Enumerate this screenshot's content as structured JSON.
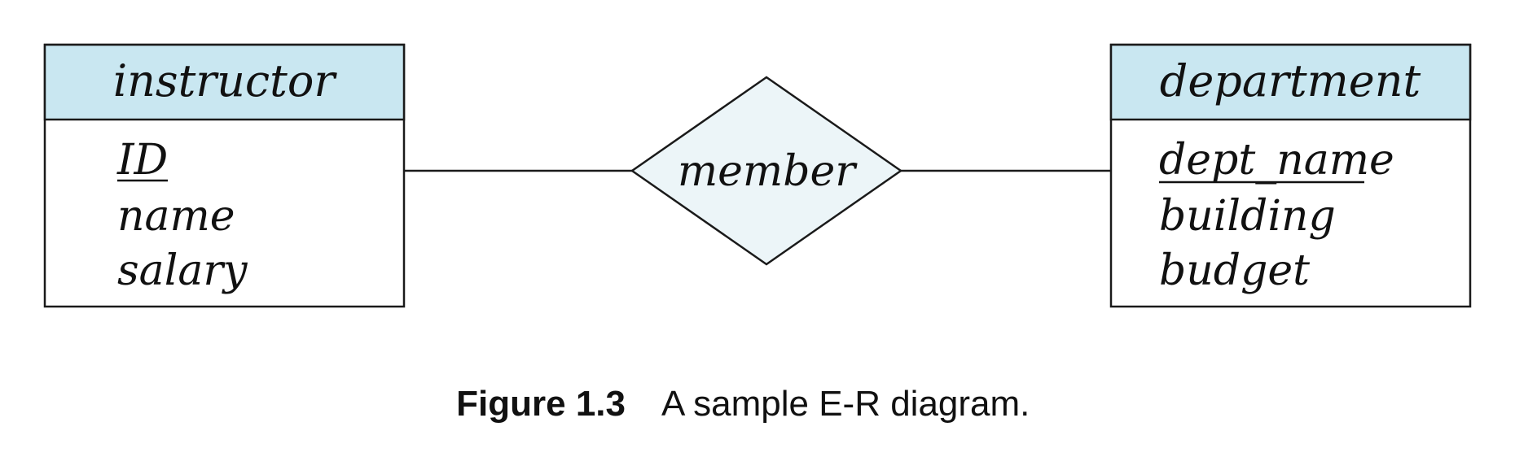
{
  "diagram": {
    "entities": [
      {
        "name": "instructor",
        "attributes": [
          {
            "label": "ID",
            "primary_key": true
          },
          {
            "label": "name",
            "primary_key": false
          },
          {
            "label": "salary",
            "primary_key": false
          }
        ]
      },
      {
        "name": "department",
        "attributes": [
          {
            "label": "dept_name",
            "primary_key": true
          },
          {
            "label": "building",
            "primary_key": false
          },
          {
            "label": "budget",
            "primary_key": false
          }
        ]
      }
    ],
    "relationship": {
      "name": "member"
    },
    "colors": {
      "entity_header_fill": "#c9e7f1",
      "relationship_fill": "#ecf5f8",
      "stroke": "#1a1a1a"
    }
  },
  "caption": {
    "label": "Figure 1.3",
    "text": "A sample E-R diagram."
  }
}
